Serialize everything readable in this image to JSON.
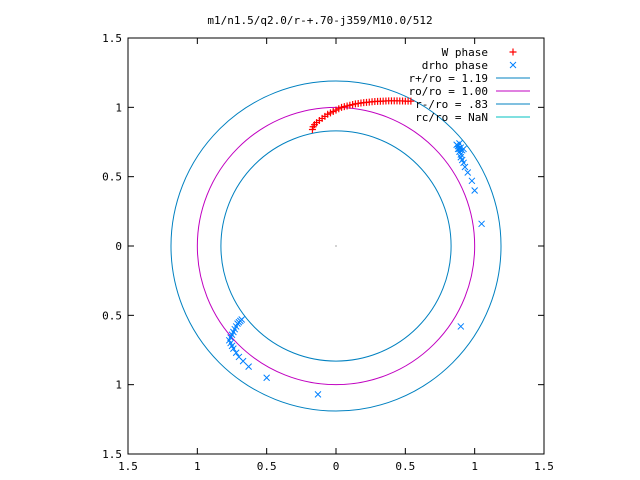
{
  "chart_data": {
    "type": "scatter",
    "title": "m1/n1.5/q2.0/r-+.70-j359/M10.0/512",
    "xlim": [
      -1.5,
      1.5
    ],
    "ylim": [
      -1.5,
      1.5
    ],
    "x_tick_labels": [
      "1.5",
      "1",
      "0.5",
      "0",
      "0.5",
      "1",
      "1.5"
    ],
    "y_tick_labels": [
      "1.5",
      "1",
      "0.5",
      "0",
      "0.5",
      "1",
      "1.5"
    ],
    "x_ticks": [
      -1.5,
      -1,
      -0.5,
      0,
      0.5,
      1,
      1.5
    ],
    "y_ticks": [
      1.5,
      1,
      0.5,
      0,
      -0.5,
      -1,
      -1.5
    ],
    "legend_position": "top-right",
    "legend": [
      {
        "label": "W phase",
        "kind": "plus",
        "color": "#ff0000"
      },
      {
        "label": "drho phase",
        "kind": "cross",
        "color": "#0080ff"
      },
      {
        "label": "r+/ro = 1.19",
        "kind": "line",
        "color": "#0080c0"
      },
      {
        "label": "ro/ro = 1.00",
        "kind": "line",
        "color": "#c000c0"
      },
      {
        "label": "r-/ro = .83",
        "kind": "line",
        "color": "#0080c0"
      },
      {
        "label": "rc/ro = NaN",
        "kind": "line",
        "color": "#00c0c0"
      }
    ],
    "circles": [
      {
        "r": 1.19,
        "color": "#0080c0"
      },
      {
        "r": 1.0,
        "color": "#c000c0"
      },
      {
        "r": 0.83,
        "color": "#0080c0"
      }
    ],
    "series": [
      {
        "name": "W phase",
        "color": "#ff0000",
        "points": [
          [
            -0.17,
            0.84
          ],
          [
            -0.165,
            0.86
          ],
          [
            -0.155,
            0.875
          ],
          [
            -0.14,
            0.89
          ],
          [
            -0.12,
            0.905
          ],
          [
            -0.1,
            0.92
          ],
          [
            -0.08,
            0.935
          ],
          [
            -0.06,
            0.95
          ],
          [
            -0.04,
            0.96
          ],
          [
            -0.02,
            0.97
          ],
          [
            0.0,
            0.98
          ],
          [
            0.02,
            0.99
          ],
          [
            0.04,
            1.0
          ],
          [
            0.06,
            1.005
          ],
          [
            0.08,
            1.01
          ],
          [
            0.1,
            1.015
          ],
          [
            0.12,
            1.02
          ],
          [
            0.14,
            1.025
          ],
          [
            0.16,
            1.028
          ],
          [
            0.18,
            1.031
          ],
          [
            0.2,
            1.034
          ],
          [
            0.22,
            1.036
          ],
          [
            0.24,
            1.038
          ],
          [
            0.26,
            1.04
          ],
          [
            0.28,
            1.042
          ],
          [
            0.3,
            1.043
          ],
          [
            0.32,
            1.044
          ],
          [
            0.34,
            1.045
          ],
          [
            0.36,
            1.046
          ],
          [
            0.38,
            1.047
          ],
          [
            0.4,
            1.047
          ],
          [
            0.42,
            1.047
          ],
          [
            0.44,
            1.047
          ],
          [
            0.46,
            1.046
          ],
          [
            0.48,
            1.046
          ],
          [
            0.5,
            1.045
          ],
          [
            0.52,
            1.045
          ],
          [
            0.54,
            1.045
          ]
        ]
      },
      {
        "name": "drho phase",
        "color": "#0080ff",
        "points": [
          [
            0.89,
            0.7
          ],
          [
            0.88,
            0.72
          ],
          [
            0.9,
            0.71
          ],
          [
            0.87,
            0.73
          ],
          [
            0.91,
            0.69
          ],
          [
            0.89,
            0.68
          ],
          [
            0.9,
            0.66
          ],
          [
            0.88,
            0.7
          ],
          [
            0.92,
            0.7
          ],
          [
            0.89,
            0.74
          ],
          [
            0.9,
            0.64
          ],
          [
            0.91,
            0.62
          ],
          [
            0.92,
            0.6
          ],
          [
            0.93,
            0.57
          ],
          [
            0.95,
            0.53
          ],
          [
            0.98,
            0.47
          ],
          [
            1.0,
            0.4
          ],
          [
            1.05,
            0.16
          ],
          [
            0.9,
            -0.58
          ],
          [
            -0.13,
            -1.07
          ],
          [
            -0.5,
            -0.95
          ],
          [
            -0.63,
            -0.87
          ],
          [
            -0.67,
            -0.83
          ],
          [
            -0.7,
            -0.8
          ],
          [
            -0.72,
            -0.77
          ],
          [
            -0.74,
            -0.74
          ],
          [
            -0.75,
            -0.72
          ],
          [
            -0.76,
            -0.7
          ],
          [
            -0.77,
            -0.68
          ],
          [
            -0.76,
            -0.66
          ],
          [
            -0.75,
            -0.64
          ],
          [
            -0.74,
            -0.62
          ],
          [
            -0.73,
            -0.6
          ],
          [
            -0.72,
            -0.58
          ],
          [
            -0.71,
            -0.56
          ],
          [
            -0.7,
            -0.55
          ],
          [
            -0.69,
            -0.54
          ],
          [
            -0.68,
            -0.53
          ]
        ]
      }
    ]
  }
}
